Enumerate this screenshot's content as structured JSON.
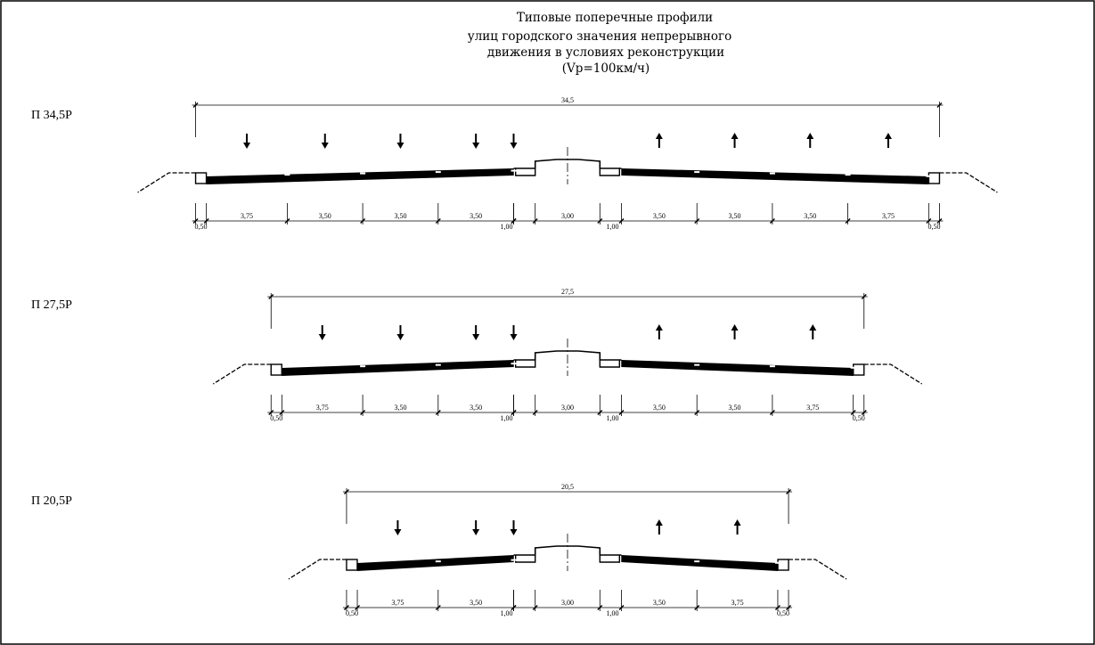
{
  "title": {
    "lines": [
      "Типовые поперечные профили",
      "улиц городского значения непрерывного",
      "движения в условиях реконструкции",
      "(Vр=100км/ч)"
    ]
  },
  "profiles": [
    {
      "label": "П 34,5Р",
      "total_width": "34,5",
      "lanes_left": [
        "3,75",
        "3,50",
        "3,50",
        "3,50"
      ],
      "lanes_right": [
        "3,50",
        "3,50",
        "3,50",
        "3,75"
      ],
      "edge_strip": "0,50",
      "safety_strip": "1,00",
      "median": "3,00"
    },
    {
      "label": "П 27,5Р",
      "total_width": "27,5",
      "lanes_left": [
        "3,75",
        "3,50",
        "3,50"
      ],
      "lanes_right": [
        "3,50",
        "3,50",
        "3,75"
      ],
      "edge_strip": "0,50",
      "safety_strip": "1,00",
      "median": "3,00"
    },
    {
      "label": "П 20,5Р",
      "total_width": "20,5",
      "lanes_left": [
        "3,75",
        "3,50"
      ],
      "lanes_right": [
        "3,50",
        "3,75"
      ],
      "edge_strip": "0,50",
      "safety_strip": "1,00",
      "median": "3,00"
    }
  ]
}
